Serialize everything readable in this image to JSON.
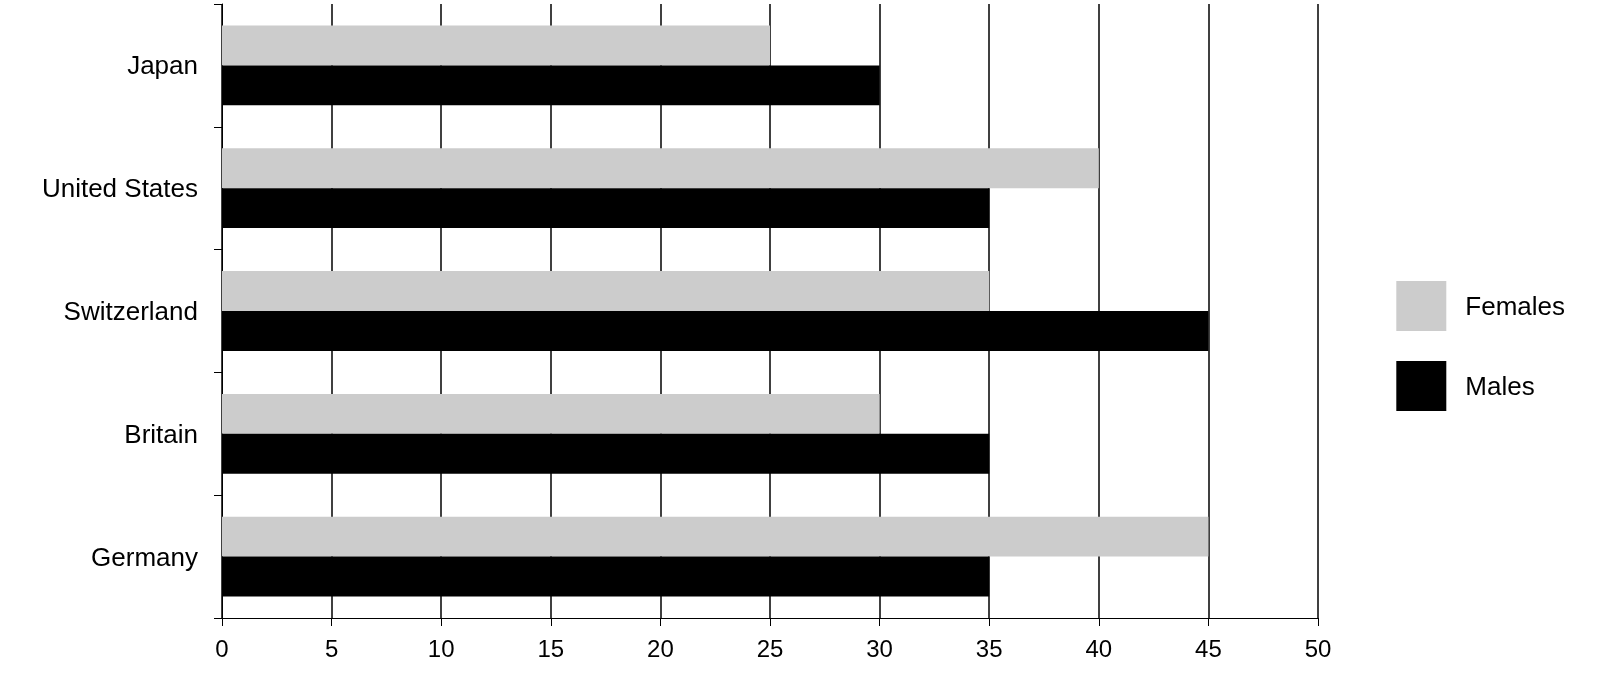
{
  "chart_data": {
    "type": "bar",
    "orientation": "horizontal",
    "categories": [
      "Japan",
      "United States",
      "Switzerland",
      "Britain",
      "Germany"
    ],
    "series": [
      {
        "name": "Females",
        "color": "#cccccc",
        "values": [
          25,
          40,
          35,
          30,
          45
        ]
      },
      {
        "name": "Males",
        "color": "#000000",
        "values": [
          30,
          35,
          45,
          35,
          35
        ]
      }
    ],
    "xlim": [
      0,
      50
    ],
    "xticks": [
      0,
      5,
      10,
      15,
      20,
      25,
      30,
      35,
      40,
      45,
      50
    ],
    "grid": "x",
    "legend": "right"
  }
}
